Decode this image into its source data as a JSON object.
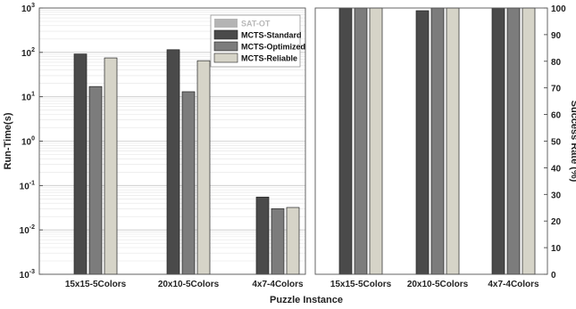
{
  "chart_data": {
    "type": "bar",
    "xlabel": "Puzzle Instance",
    "categories": [
      "15x15-5Colors",
      "20x10-5Colors",
      "4x7-4Colors"
    ],
    "series": [
      {
        "name": "SAT-OT",
        "color": "#b4b4b4"
      },
      {
        "name": "MCTS-Standard",
        "color": "#4a4a4a"
      },
      {
        "name": "MCTS-Optimized",
        "color": "#7c7c7c"
      },
      {
        "name": "MCTS-Reliable",
        "color": "#d6d4c8"
      }
    ],
    "panels": [
      {
        "ylabel": "Run-Time(s)",
        "yscale": "log",
        "ylim": [
          0.001,
          1000
        ],
        "ytick_labels": [
          {
            "base": "10",
            "exp": "-3"
          },
          {
            "base": "10",
            "exp": "-2"
          },
          {
            "base": "10",
            "exp": "-1"
          },
          {
            "base": "10",
            "exp": "0"
          },
          {
            "base": "10",
            "exp": "1"
          },
          {
            "base": "10",
            "exp": "2"
          },
          {
            "base": "10",
            "exp": "3"
          }
        ],
        "grid": true,
        "legend": "top-right",
        "values": {
          "MCTS-Standard": [
            92,
            115,
            0.055
          ],
          "MCTS-Optimized": [
            17,
            13,
            0.03
          ],
          "MCTS-Reliable": [
            75,
            65,
            0.032
          ]
        }
      },
      {
        "ylabel": "Success Rate (%)",
        "yscale": "linear",
        "ylim": [
          0,
          100
        ],
        "ytick_labels": [
          "0",
          "10",
          "20",
          "30",
          "40",
          "50",
          "60",
          "70",
          "80",
          "90",
          "100"
        ],
        "grid": false,
        "values": {
          "MCTS-Standard": [
            100,
            99,
            100
          ],
          "MCTS-Optimized": [
            100,
            100,
            100
          ],
          "MCTS-Reliable": [
            100,
            100,
            100
          ]
        }
      }
    ]
  }
}
